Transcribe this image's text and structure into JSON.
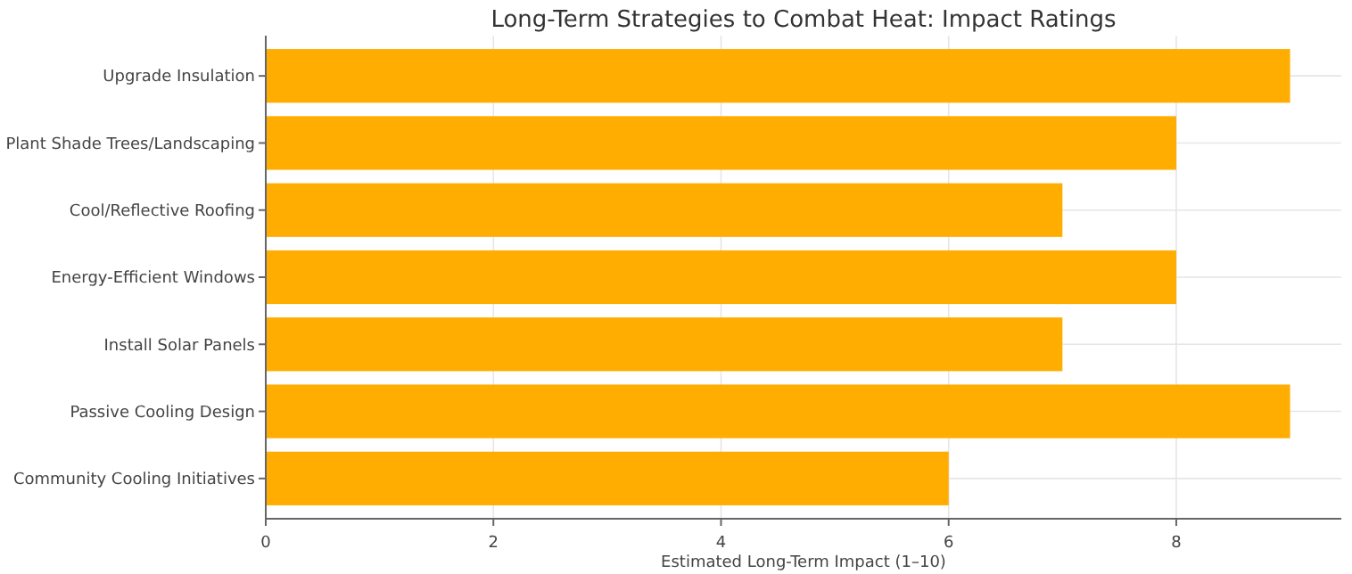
{
  "chart_data": {
    "type": "bar",
    "orientation": "horizontal",
    "title": "Long-Term Strategies to Combat Heat: Impact Ratings",
    "xlabel": "Estimated Long-Term Impact (1–10)",
    "categories": [
      "Upgrade Insulation",
      "Plant Shade Trees/Landscaping",
      "Cool/Reflective Roofing",
      "Energy-Efficient Windows",
      "Install Solar Panels",
      "Passive Cooling Design",
      "Community Cooling Initiatives"
    ],
    "values": [
      9,
      8,
      7,
      8,
      7,
      9,
      6
    ],
    "color": "#ffad00",
    "xlim": [
      0,
      9.45
    ],
    "xticks": [
      0,
      2,
      4,
      6,
      8
    ],
    "grid": true
  }
}
